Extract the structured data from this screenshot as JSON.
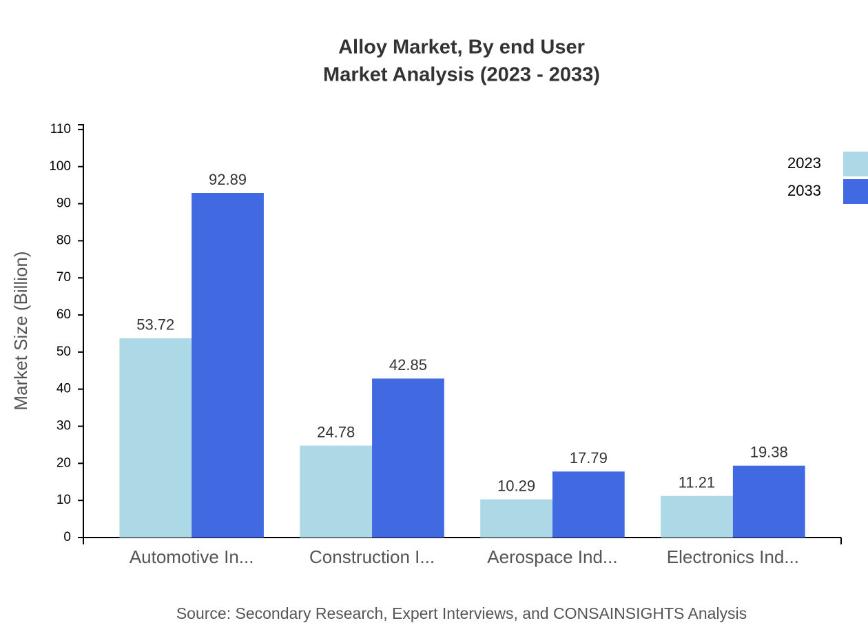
{
  "chart_data": {
    "type": "bar",
    "title": "Alloy Market, By end User",
    "subtitle": "Market Analysis (2023 - 2033)",
    "y_label": "Market Size (Billion)",
    "source": "Source: Secondary Research, Expert Interviews, and CONSAINSIGHTS Analysis",
    "categories": [
      "Automotive In...",
      "Construction I...",
      "Aerospace Ind...",
      "Electronics Ind..."
    ],
    "series": [
      {
        "name": "2023",
        "color": "#add8e6",
        "values": [
          53.72,
          24.78,
          10.29,
          11.21
        ]
      },
      {
        "name": "2033",
        "color": "#4169e1",
        "values": [
          92.89,
          42.85,
          17.79,
          19.38
        ]
      }
    ],
    "ylim": [
      0,
      111.47
    ],
    "yticks": [
      0,
      10,
      20,
      30,
      40,
      50,
      60,
      70,
      80,
      90,
      100,
      110
    ],
    "legend": "top-right"
  }
}
